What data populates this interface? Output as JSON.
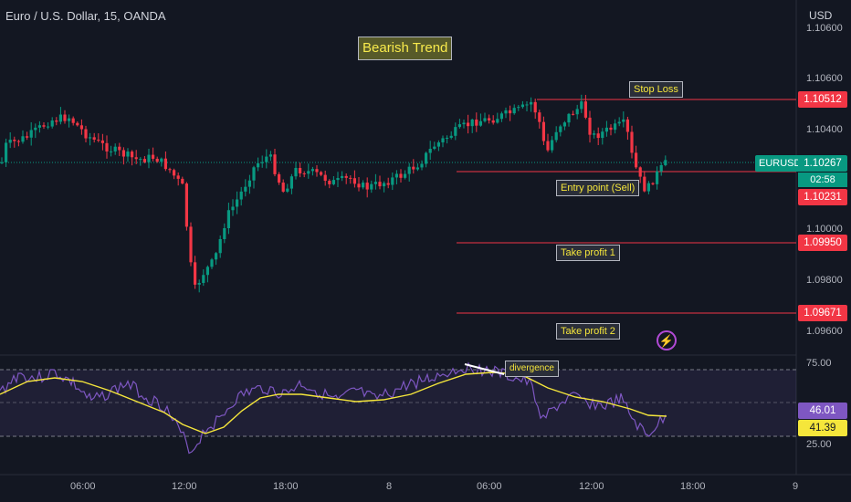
{
  "header": {
    "title": "Euro / U.S. Dollar, 15, OANDA",
    "currency": "USD"
  },
  "annotations": {
    "trend": "Bearish Trend",
    "stop_loss": "Stop Loss",
    "entry_point": "Entry point (Sell)",
    "take_profit_1": "Take profit 1",
    "take_profit_2": "Take profit 2",
    "divergence": "divergence"
  },
  "price_axis": {
    "ticks": [
      "1.10600",
      "1.10400",
      "1.10000",
      "1.09800",
      "1.09600"
    ]
  },
  "price_tags": {
    "stop_loss": "1.10512",
    "current": "1.10267",
    "countdown": "02:58",
    "entry": "1.10231",
    "take_profit_1": "1.09950",
    "take_profit_2": "1.09671",
    "ticker": "EURUSD"
  },
  "rsi_axis": {
    "ticks": [
      "75.00",
      "25.00"
    ],
    "rsi_value": "46.01",
    "ma_value": "41.39"
  },
  "time_axis": {
    "ticks": [
      "06:00",
      "12:00",
      "18:00",
      "8",
      "06:00",
      "12:00",
      "18:00",
      "9"
    ]
  },
  "colors": {
    "background": "#131722",
    "up_candle": "#089981",
    "down_candle": "#f23645",
    "level_line": "#f23645",
    "rsi_line": "#7e57c2",
    "rsi_ma": "#f5e63b"
  },
  "icons": {
    "bolt": "lightning-bolt-icon"
  }
}
